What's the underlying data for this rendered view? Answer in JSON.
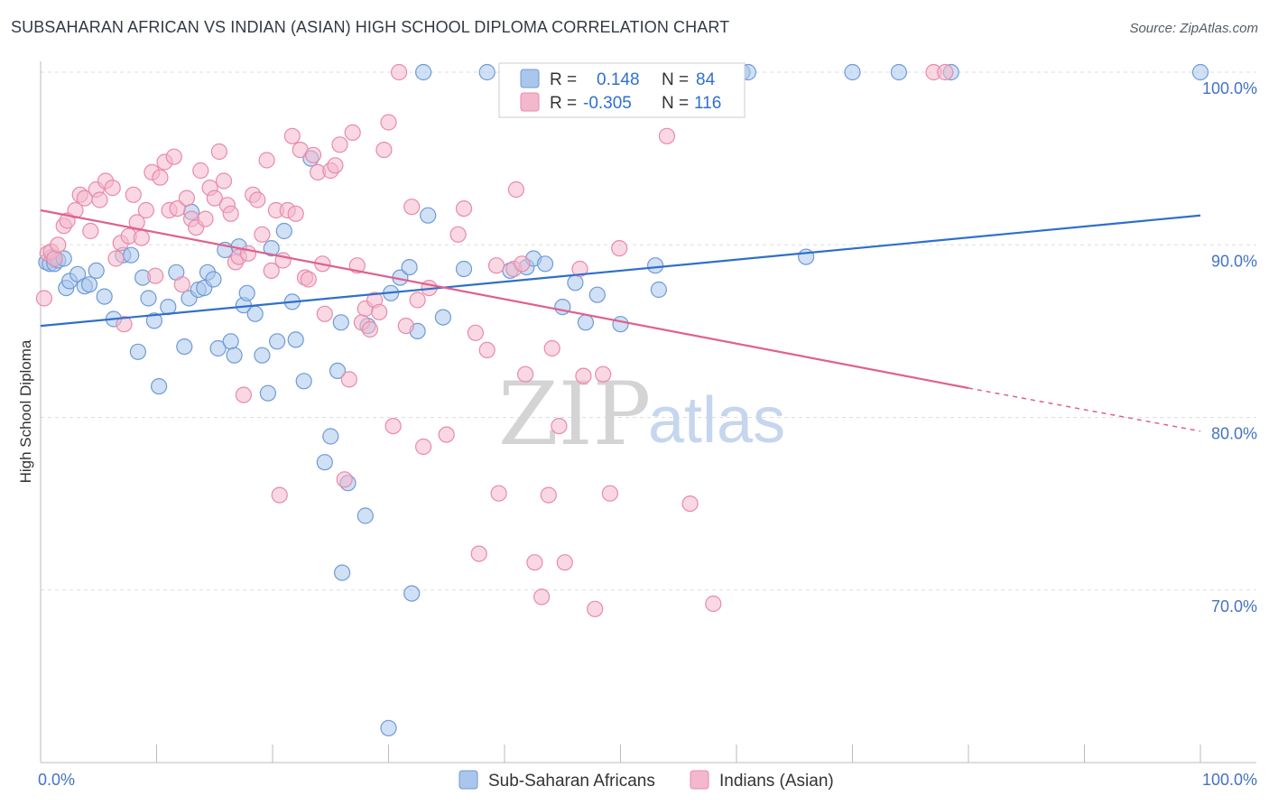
{
  "title": "SUBSAHARAN AFRICAN VS INDIAN (ASIAN) HIGH SCHOOL DIPLOMA CORRELATION CHART",
  "source": "Source: ZipAtlas.com",
  "watermark": {
    "zip": "ZIP",
    "atlas": "atlas"
  },
  "colors": {
    "blue_fill": "#a9c6ec",
    "blue_stroke": "#6f9ad6",
    "blue_line": "#2f6fcc",
    "pink_fill": "#f4b8cc",
    "pink_stroke": "#e98aa8",
    "pink_line": "#e0608e",
    "grid": "#dddddd",
    "tick_label": "#4472c4"
  },
  "legend": {
    "r_label": "R =",
    "n_label": "N =",
    "rows": [
      {
        "r": "0.148",
        "n": "84"
      },
      {
        "r": "-0.305",
        "n": "116"
      }
    ]
  },
  "chart_data": {
    "type": "scatter",
    "xlabel": "",
    "ylabel": "High School Diploma",
    "xlim": [
      0,
      100
    ],
    "ylim": [
      60,
      100
    ],
    "x_tick_labels": [
      "0.0%",
      "100.0%"
    ],
    "y_ticks": [
      70,
      80,
      90,
      100
    ],
    "y_tick_labels": [
      "70.0%",
      "80.0%",
      "90.0%",
      "100.0%"
    ],
    "grid": true,
    "legend_position": "top-center",
    "series": [
      {
        "name": "Sub-Saharan Africans",
        "color": "#a9c6ec",
        "trend": {
          "x0": 0,
          "y0": 85.3,
          "x1": 100,
          "y1": 91.7
        },
        "points": [
          [
            0.5,
            89.0
          ],
          [
            0.8,
            88.9
          ],
          [
            1.0,
            89.3
          ],
          [
            1.2,
            88.9
          ],
          [
            1.5,
            89.1
          ],
          [
            2.0,
            89.2
          ],
          [
            2.2,
            87.5
          ],
          [
            2.5,
            87.9
          ],
          [
            3.2,
            88.3
          ],
          [
            3.8,
            87.6
          ],
          [
            4.2,
            87.7
          ],
          [
            4.8,
            88.5
          ],
          [
            5.5,
            87.0
          ],
          [
            6.3,
            85.7
          ],
          [
            7.1,
            89.4
          ],
          [
            7.8,
            89.4
          ],
          [
            8.4,
            83.8
          ],
          [
            8.8,
            88.1
          ],
          [
            9.3,
            86.9
          ],
          [
            9.8,
            85.6
          ],
          [
            10.2,
            81.8
          ],
          [
            11.0,
            86.4
          ],
          [
            11.7,
            88.4
          ],
          [
            12.4,
            84.1
          ],
          [
            12.8,
            86.9
          ],
          [
            13.0,
            91.9
          ],
          [
            13.6,
            87.4
          ],
          [
            14.1,
            87.5
          ],
          [
            14.4,
            88.4
          ],
          [
            14.9,
            88.0
          ],
          [
            15.3,
            84.0
          ],
          [
            15.9,
            89.7
          ],
          [
            16.4,
            84.4
          ],
          [
            16.7,
            83.6
          ],
          [
            17.1,
            89.9
          ],
          [
            17.5,
            86.5
          ],
          [
            17.8,
            87.2
          ],
          [
            18.5,
            86.0
          ],
          [
            19.1,
            83.6
          ],
          [
            19.6,
            81.4
          ],
          [
            19.9,
            89.8
          ],
          [
            20.4,
            84.4
          ],
          [
            21.0,
            90.8
          ],
          [
            21.7,
            86.7
          ],
          [
            22.0,
            84.5
          ],
          [
            22.7,
            82.1
          ],
          [
            23.3,
            95.0
          ],
          [
            24.5,
            77.4
          ],
          [
            25.0,
            78.9
          ],
          [
            25.6,
            82.7
          ],
          [
            25.9,
            85.5
          ],
          [
            26.0,
            71.0
          ],
          [
            26.5,
            76.2
          ],
          [
            28.0,
            74.3
          ],
          [
            28.2,
            85.3
          ],
          [
            30.0,
            62.0
          ],
          [
            30.2,
            87.2
          ],
          [
            31.0,
            88.1
          ],
          [
            31.8,
            88.7
          ],
          [
            32.0,
            69.8
          ],
          [
            32.5,
            85.0
          ],
          [
            33.0,
            100.0
          ],
          [
            33.4,
            91.7
          ],
          [
            34.7,
            85.8
          ],
          [
            36.5,
            88.6
          ],
          [
            38.5,
            100.0
          ],
          [
            40.5,
            88.5
          ],
          [
            41.9,
            88.7
          ],
          [
            42.5,
            89.2
          ],
          [
            43.5,
            88.9
          ],
          [
            45.0,
            86.4
          ],
          [
            46.1,
            87.8
          ],
          [
            47.0,
            85.5
          ],
          [
            48.0,
            87.1
          ],
          [
            50.0,
            85.4
          ],
          [
            53.0,
            88.8
          ],
          [
            53.3,
            87.4
          ],
          [
            60.5,
            100.0
          ],
          [
            61.0,
            100.0
          ],
          [
            66.0,
            89.3
          ],
          [
            70.0,
            100.0
          ],
          [
            74.0,
            100.0
          ],
          [
            78.5,
            100.0
          ],
          [
            100.0,
            100.0
          ]
        ]
      },
      {
        "name": "Indians (Asian)",
        "color": "#f4b8cc",
        "trend": {
          "x0": 0,
          "y0": 92.0,
          "x1": 80,
          "y1": 81.7,
          "dash_x1": 100,
          "dash_y1": 79.2
        },
        "points": [
          [
            0.3,
            86.9
          ],
          [
            0.6,
            89.5
          ],
          [
            0.9,
            89.6
          ],
          [
            1.2,
            89.2
          ],
          [
            1.5,
            90.0
          ],
          [
            2.0,
            91.1
          ],
          [
            2.3,
            91.4
          ],
          [
            3.0,
            92.0
          ],
          [
            3.4,
            92.9
          ],
          [
            3.8,
            92.7
          ],
          [
            4.3,
            90.8
          ],
          [
            4.8,
            93.2
          ],
          [
            5.1,
            92.6
          ],
          [
            5.6,
            93.7
          ],
          [
            6.2,
            93.3
          ],
          [
            6.5,
            89.2
          ],
          [
            6.9,
            90.1
          ],
          [
            7.2,
            85.4
          ],
          [
            7.6,
            90.5
          ],
          [
            8.0,
            92.9
          ],
          [
            8.3,
            91.3
          ],
          [
            8.7,
            90.4
          ],
          [
            9.1,
            92.0
          ],
          [
            9.6,
            94.2
          ],
          [
            9.9,
            88.2
          ],
          [
            10.3,
            93.9
          ],
          [
            10.7,
            94.8
          ],
          [
            11.1,
            92.0
          ],
          [
            11.5,
            95.1
          ],
          [
            11.8,
            92.1
          ],
          [
            12.2,
            87.7
          ],
          [
            12.6,
            92.7
          ],
          [
            13.0,
            91.5
          ],
          [
            13.4,
            91.0
          ],
          [
            13.8,
            94.3
          ],
          [
            14.2,
            91.5
          ],
          [
            14.6,
            93.3
          ],
          [
            15.0,
            92.7
          ],
          [
            15.4,
            95.4
          ],
          [
            15.8,
            93.7
          ],
          [
            16.1,
            92.3
          ],
          [
            16.4,
            91.8
          ],
          [
            16.8,
            89.0
          ],
          [
            17.1,
            89.3
          ],
          [
            17.5,
            81.3
          ],
          [
            17.9,
            89.5
          ],
          [
            18.3,
            92.9
          ],
          [
            18.7,
            92.6
          ],
          [
            19.1,
            90.6
          ],
          [
            19.5,
            94.9
          ],
          [
            19.9,
            88.5
          ],
          [
            20.3,
            92.0
          ],
          [
            20.6,
            75.5
          ],
          [
            20.9,
            89.1
          ],
          [
            21.3,
            92.0
          ],
          [
            21.7,
            96.3
          ],
          [
            22.0,
            91.8
          ],
          [
            22.4,
            95.5
          ],
          [
            22.8,
            88.1
          ],
          [
            23.1,
            88.0
          ],
          [
            23.5,
            95.2
          ],
          [
            23.9,
            94.2
          ],
          [
            24.3,
            88.9
          ],
          [
            24.5,
            86.0
          ],
          [
            25.0,
            94.3
          ],
          [
            25.4,
            94.6
          ],
          [
            25.8,
            95.8
          ],
          [
            26.2,
            76.4
          ],
          [
            26.6,
            82.2
          ],
          [
            26.9,
            96.5
          ],
          [
            27.3,
            88.8
          ],
          [
            27.7,
            85.5
          ],
          [
            28.0,
            86.3
          ],
          [
            28.4,
            85.1
          ],
          [
            28.8,
            86.8
          ],
          [
            29.2,
            86.1
          ],
          [
            29.6,
            95.5
          ],
          [
            30.0,
            97.1
          ],
          [
            30.4,
            79.5
          ],
          [
            30.9,
            100.0
          ],
          [
            31.5,
            85.3
          ],
          [
            32.0,
            92.2
          ],
          [
            32.5,
            86.8
          ],
          [
            33.0,
            78.3
          ],
          [
            33.5,
            87.5
          ],
          [
            35.0,
            79.0
          ],
          [
            36.0,
            90.6
          ],
          [
            36.5,
            92.1
          ],
          [
            37.5,
            84.9
          ],
          [
            37.8,
            72.1
          ],
          [
            38.5,
            83.9
          ],
          [
            39.3,
            88.8
          ],
          [
            39.5,
            75.6
          ],
          [
            40.8,
            88.6
          ],
          [
            41.0,
            93.2
          ],
          [
            41.5,
            88.9
          ],
          [
            41.8,
            82.5
          ],
          [
            42.6,
            71.6
          ],
          [
            43.2,
            69.6
          ],
          [
            43.8,
            75.5
          ],
          [
            44.1,
            84.0
          ],
          [
            44.7,
            79.5
          ],
          [
            45.2,
            71.6
          ],
          [
            46.5,
            88.6
          ],
          [
            46.8,
            82.4
          ],
          [
            47.5,
            100.0
          ],
          [
            47.8,
            68.9
          ],
          [
            48.5,
            82.5
          ],
          [
            49.1,
            75.6
          ],
          [
            49.9,
            89.8
          ],
          [
            50.5,
            100.0
          ],
          [
            54.0,
            96.3
          ],
          [
            56.0,
            75.0
          ],
          [
            58.0,
            69.2
          ],
          [
            77.0,
            100.0
          ],
          [
            78.0,
            100.0
          ]
        ]
      }
    ]
  }
}
